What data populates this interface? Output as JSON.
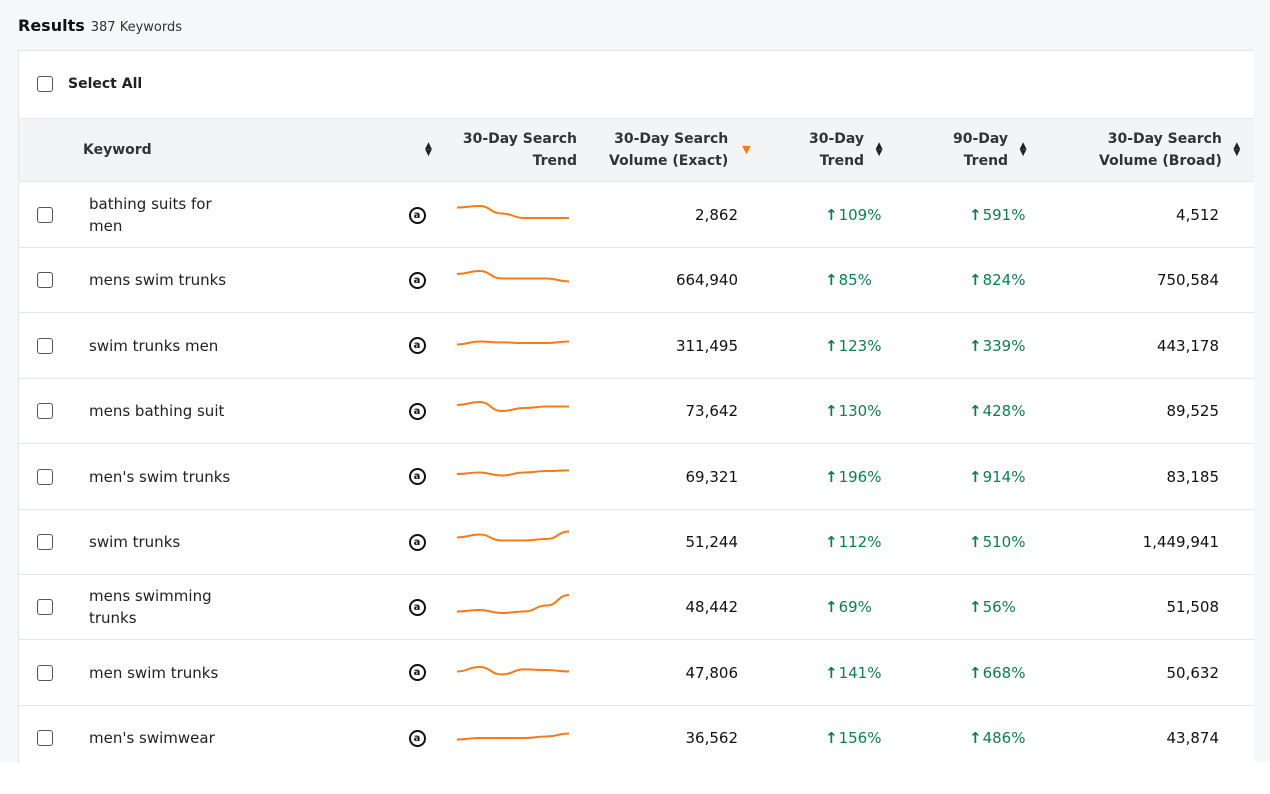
{
  "results": {
    "title": "Results",
    "count": "387 Keywords"
  },
  "select_all_label": "Select All",
  "columns": {
    "keyword": "Keyword",
    "search_trend": [
      "30-Day Search",
      "Trend"
    ],
    "volume_exact": [
      "30-Day Search",
      "Volume (Exact)"
    ],
    "trend_30": [
      "30-Day",
      "Trend"
    ],
    "trend_90": [
      "90-Day",
      "Trend"
    ],
    "volume_broad": [
      "30-Day Search",
      "Volume (Broad)"
    ]
  },
  "icons": {
    "marketplace": "amazon-icon",
    "up_arrow": "arrow-up-icon",
    "sort": "sort-both-icon",
    "sort_active": "sort-desc-icon"
  },
  "colors": {
    "accent": "#f07c1c",
    "positive": "#0f7d4e",
    "header_bg": "#f3f4f6"
  },
  "rows": [
    {
      "keyword": "bathing suits for men",
      "volume_exact": "2,862",
      "trend_30": "109%",
      "trend_90": "591%",
      "volume_broad": "4,512",
      "spark": [
        0.75,
        0.8,
        0.55,
        0.4,
        0.4,
        0.4
      ]
    },
    {
      "keyword": "mens swim trunks",
      "volume_exact": "664,940",
      "trend_30": "85%",
      "trend_90": "824%",
      "volume_broad": "750,584",
      "spark": [
        0.7,
        0.8,
        0.55,
        0.55,
        0.55,
        0.45
      ]
    },
    {
      "keyword": "swim trunks men",
      "volume_exact": "311,495",
      "trend_30": "123%",
      "trend_90": "339%",
      "volume_broad": "443,178",
      "spark": [
        0.55,
        0.65,
        0.62,
        0.6,
        0.6,
        0.65
      ]
    },
    {
      "keyword": "mens bathing suit",
      "volume_exact": "73,642",
      "trend_30": "130%",
      "trend_90": "428%",
      "volume_broad": "89,525",
      "spark": [
        0.7,
        0.8,
        0.5,
        0.6,
        0.65,
        0.65
      ]
    },
    {
      "keyword": "men's swim trunks",
      "volume_exact": "69,321",
      "trend_30": "196%",
      "trend_90": "914%",
      "volume_broad": "83,185",
      "spark": [
        0.6,
        0.65,
        0.55,
        0.65,
        0.7,
        0.72
      ]
    },
    {
      "keyword": "swim trunks",
      "volume_exact": "51,244",
      "trend_30": "112%",
      "trend_90": "510%",
      "volume_broad": "1,449,941",
      "spark": [
        0.65,
        0.75,
        0.55,
        0.55,
        0.6,
        0.85
      ]
    },
    {
      "keyword": "mens swimming trunks",
      "volume_exact": "48,442",
      "trend_30": "69%",
      "trend_90": "56%",
      "volume_broad": "51,508",
      "spark": [
        0.35,
        0.4,
        0.3,
        0.35,
        0.55,
        0.9
      ]
    },
    {
      "keyword": "men swim trunks",
      "volume_exact": "47,806",
      "trend_30": "141%",
      "trend_90": "668%",
      "volume_broad": "50,632",
      "spark": [
        0.55,
        0.7,
        0.45,
        0.62,
        0.6,
        0.55
      ]
    },
    {
      "keyword": "men's swimwear",
      "volume_exact": "36,562",
      "trend_30": "156%",
      "trend_90": "486%",
      "volume_broad": "43,874",
      "spark": [
        0.45,
        0.5,
        0.5,
        0.5,
        0.55,
        0.65
      ]
    }
  ]
}
